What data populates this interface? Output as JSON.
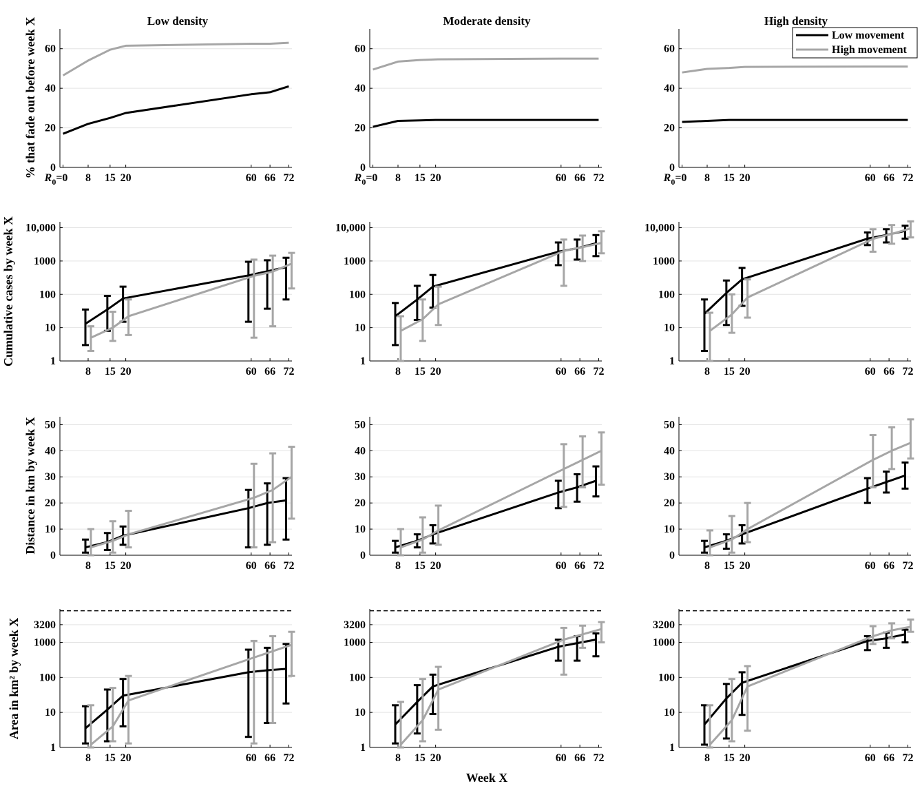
{
  "col_titles": [
    "Low density",
    "Moderate density",
    "High density"
  ],
  "row_ylabels": [
    "% that fade out before week X",
    "Cumulative cases by week X",
    "Distance in km by week X",
    "Area in km² by week X"
  ],
  "xlabel": "Week X",
  "legend": {
    "low": "Low movement",
    "high": "High movement"
  },
  "colors": {
    "low": "#000000",
    "high": "#a6a6a6",
    "grid": "#e3e3e3"
  },
  "chart_data": [
    {
      "type": "line",
      "name": "fadeout",
      "x": [
        0,
        8,
        15,
        20,
        60,
        66,
        72
      ],
      "x_tick_labels": [
        "R0=0",
        "8",
        "15",
        "20",
        "60",
        "66",
        "72"
      ],
      "ylim": [
        0,
        70
      ],
      "y_ticks": [
        0,
        20,
        40,
        60
      ],
      "y_tick_labels": [
        "0",
        "20",
        "40",
        "60"
      ],
      "grid": true,
      "panels": [
        {
          "title": "Low density",
          "series": [
            {
              "name": "Low movement",
              "values": [
                17,
                22,
                25,
                27.5,
                37,
                38,
                41
              ]
            },
            {
              "name": "High movement",
              "values": [
                46.5,
                54,
                59.5,
                61.5,
                62.5,
                62.5,
                63
              ]
            }
          ]
        },
        {
          "title": "Moderate density",
          "series": [
            {
              "name": "Low movement",
              "values": [
                20.5,
                23.5,
                23.8,
                24,
                24,
                24,
                24
              ]
            },
            {
              "name": "High movement",
              "values": [
                49.5,
                53.5,
                54.3,
                54.6,
                55,
                55,
                55
              ]
            }
          ]
        },
        {
          "title": "High density",
          "series": [
            {
              "name": "Low movement",
              "values": [
                23,
                23.5,
                24,
                24,
                24,
                24,
                24
              ]
            },
            {
              "name": "High movement",
              "values": [
                48,
                49.8,
                50.3,
                50.8,
                51,
                51,
                51
              ]
            }
          ]
        }
      ]
    },
    {
      "type": "line",
      "name": "cases",
      "scale": "log",
      "x": [
        8,
        15,
        20,
        60,
        66,
        72
      ],
      "x_tick_labels": [
        "8",
        "15",
        "20",
        "60",
        "66",
        "72"
      ],
      "ylim": [
        1,
        15000
      ],
      "y_ticks": [
        1,
        10,
        100,
        1000,
        10000
      ],
      "y_tick_labels": [
        "1",
        "10",
        "100",
        "1000",
        "10,000"
      ],
      "grid": true,
      "error_bars": "low-high",
      "panels": [
        {
          "title": "Low density",
          "series": [
            {
              "name": "Low movement",
              "values": [
                13,
                35,
                75,
                370,
                490,
                650
              ],
              "low": [
                3,
                8,
                15,
                15,
                37,
                70
              ],
              "high": [
                35,
                90,
                170,
                950,
                1050,
                1250
              ]
            },
            {
              "name": "High movement",
              "values": [
                5,
                10,
                22,
                360,
                480,
                830
              ],
              "low": [
                2,
                4,
                6,
                5,
                11,
                150
              ],
              "high": [
                11,
                30,
                70,
                1100,
                1450,
                1750
              ]
            }
          ]
        },
        {
          "title": "Moderate density",
          "series": [
            {
              "name": "Low movement",
              "values": [
                22,
                70,
                170,
                1900,
                2400,
                3400
              ],
              "low": [
                3,
                17,
                40,
                750,
                1100,
                1400
              ],
              "high": [
                55,
                180,
                380,
                3600,
                4400,
                6000
              ]
            },
            {
              "name": "High movement",
              "values": [
                8,
                18,
                50,
                2000,
                2600,
                3500
              ],
              "low": [
                1,
                4,
                12,
                180,
                1000,
                1700
              ],
              "high": [
                22,
                70,
                170,
                4400,
                5800,
                7800
              ]
            }
          ]
        },
        {
          "title": "High density",
          "series": [
            {
              "name": "Low movement",
              "values": [
                26,
                110,
                280,
                4700,
                6000,
                8000
              ],
              "low": [
                2,
                12,
                45,
                3000,
                3600,
                4700
              ],
              "high": [
                70,
                260,
                620,
                7200,
                9000,
                11500
              ]
            },
            {
              "name": "High movement",
              "values": [
                8,
                25,
                80,
                4600,
                6500,
                9500
              ],
              "low": [
                1,
                7,
                20,
                1900,
                3300,
                5100
              ],
              "high": [
                28,
                100,
                280,
                9000,
                12000,
                15500
              ]
            }
          ]
        }
      ]
    },
    {
      "type": "line",
      "name": "distance",
      "x": [
        8,
        15,
        20,
        60,
        66,
        72
      ],
      "x_tick_labels": [
        "8",
        "15",
        "20",
        "60",
        "66",
        "72"
      ],
      "ylim": [
        0,
        53
      ],
      "y_ticks": [
        0,
        10,
        20,
        30,
        40,
        50
      ],
      "y_tick_labels": [
        "0",
        "10",
        "20",
        "30",
        "40",
        "50"
      ],
      "grid": true,
      "error_bars": "low-high",
      "panels": [
        {
          "title": "Low density",
          "series": [
            {
              "name": "Low movement",
              "values": [
                3,
                5,
                7.5,
                18,
                20,
                21
              ],
              "low": [
                1,
                2,
                4,
                3,
                4,
                6
              ],
              "high": [
                6,
                8.5,
                11,
                25,
                27.5,
                29.5
              ]
            },
            {
              "name": "High movement",
              "values": [
                3,
                5.5,
                8,
                22,
                25,
                30
              ],
              "low": [
                0,
                1,
                3,
                3,
                5,
                14
              ],
              "high": [
                10,
                13,
                17,
                35,
                39,
                41.5
              ]
            }
          ]
        },
        {
          "title": "Moderate density",
          "series": [
            {
              "name": "Low movement",
              "values": [
                3,
                5.5,
                8,
                24,
                26,
                28.5
              ],
              "low": [
                1,
                3,
                4.5,
                18,
                20.5,
                22.5
              ],
              "high": [
                5.5,
                8,
                11.5,
                28.5,
                31,
                34
              ]
            },
            {
              "name": "High movement",
              "values": [
                3,
                6,
                9.5,
                33,
                36.5,
                40
              ],
              "low": [
                0,
                1,
                4,
                18.5,
                26,
                27
              ],
              "high": [
                10,
                14.5,
                19,
                42.5,
                45.5,
                47
              ]
            }
          ]
        },
        {
          "title": "High density",
          "series": [
            {
              "name": "Low movement",
              "values": [
                3,
                5.5,
                8,
                25.5,
                28,
                30.5
              ],
              "low": [
                1,
                2.5,
                4.5,
                20,
                24,
                25.5
              ],
              "high": [
                5.5,
                8,
                11.5,
                29.5,
                32,
                35.5
              ]
            },
            {
              "name": "High movement",
              "values": [
                3,
                6,
                10,
                36.5,
                40,
                43
              ],
              "low": [
                0,
                1,
                5,
                26,
                33,
                37
              ],
              "high": [
                9.5,
                15,
                20,
                46,
                49,
                52
              ]
            }
          ]
        }
      ]
    },
    {
      "type": "line",
      "name": "area",
      "scale": "log",
      "x": [
        8,
        15,
        20,
        60,
        66,
        72
      ],
      "x_tick_labels": [
        "8",
        "15",
        "20",
        "60",
        "66",
        "72"
      ],
      "ylim": [
        1,
        9000
      ],
      "y_ticks": [
        1,
        10,
        100,
        1000,
        3200
      ],
      "y_tick_labels": [
        "1",
        "10",
        "100",
        "1000",
        "3200"
      ],
      "grid": true,
      "reference_line": 8000,
      "error_bars": "low-high",
      "panels": [
        {
          "title": "Low density",
          "series": [
            {
              "name": "Low movement",
              "values": [
                3.5,
                12,
                30,
                140,
                160,
                175
              ],
              "low": [
                1.3,
                1.5,
                4,
                2,
                5,
                18
              ],
              "high": [
                15,
                45,
                90,
                620,
                700,
                900
              ]
            },
            {
              "name": "High movement",
              "values": [
                1.2,
                4,
                22,
                370,
                560,
                850
              ],
              "low": [
                1,
                1.5,
                1.3,
                1.3,
                5,
                110
              ],
              "high": [
                16,
                50,
                110,
                1100,
                1500,
                2000
              ]
            }
          ]
        },
        {
          "title": "Moderate density",
          "series": [
            {
              "name": "Low movement",
              "values": [
                4.5,
                20,
                55,
                750,
                950,
                1200
              ],
              "low": [
                1.3,
                2.5,
                9,
                300,
                300,
                400
              ],
              "high": [
                16,
                60,
                120,
                1200,
                1500,
                1800
              ]
            },
            {
              "name": "High movement",
              "values": [
                1.2,
                6,
                45,
                1200,
                1700,
                2400
              ],
              "low": [
                1,
                1.5,
                3.2,
                120,
                700,
                1000
              ],
              "high": [
                20,
                90,
                200,
                2600,
                3000,
                3800
              ]
            }
          ]
        },
        {
          "title": "High density",
          "series": [
            {
              "name": "Low movement",
              "values": [
                4.5,
                25,
                70,
                1100,
                1300,
                1700
              ],
              "low": [
                1.2,
                1.8,
                8.5,
                600,
                700,
                1000
              ],
              "high": [
                16,
                65,
                140,
                1500,
                1900,
                2300
              ]
            },
            {
              "name": "High movement",
              "values": [
                1.2,
                6,
                55,
                1500,
                2200,
                2800
              ],
              "low": [
                1,
                1.5,
                3,
                900,
                1300,
                2000
              ],
              "high": [
                16,
                90,
                210,
                2900,
                3500,
                4500
              ]
            }
          ]
        }
      ]
    }
  ]
}
